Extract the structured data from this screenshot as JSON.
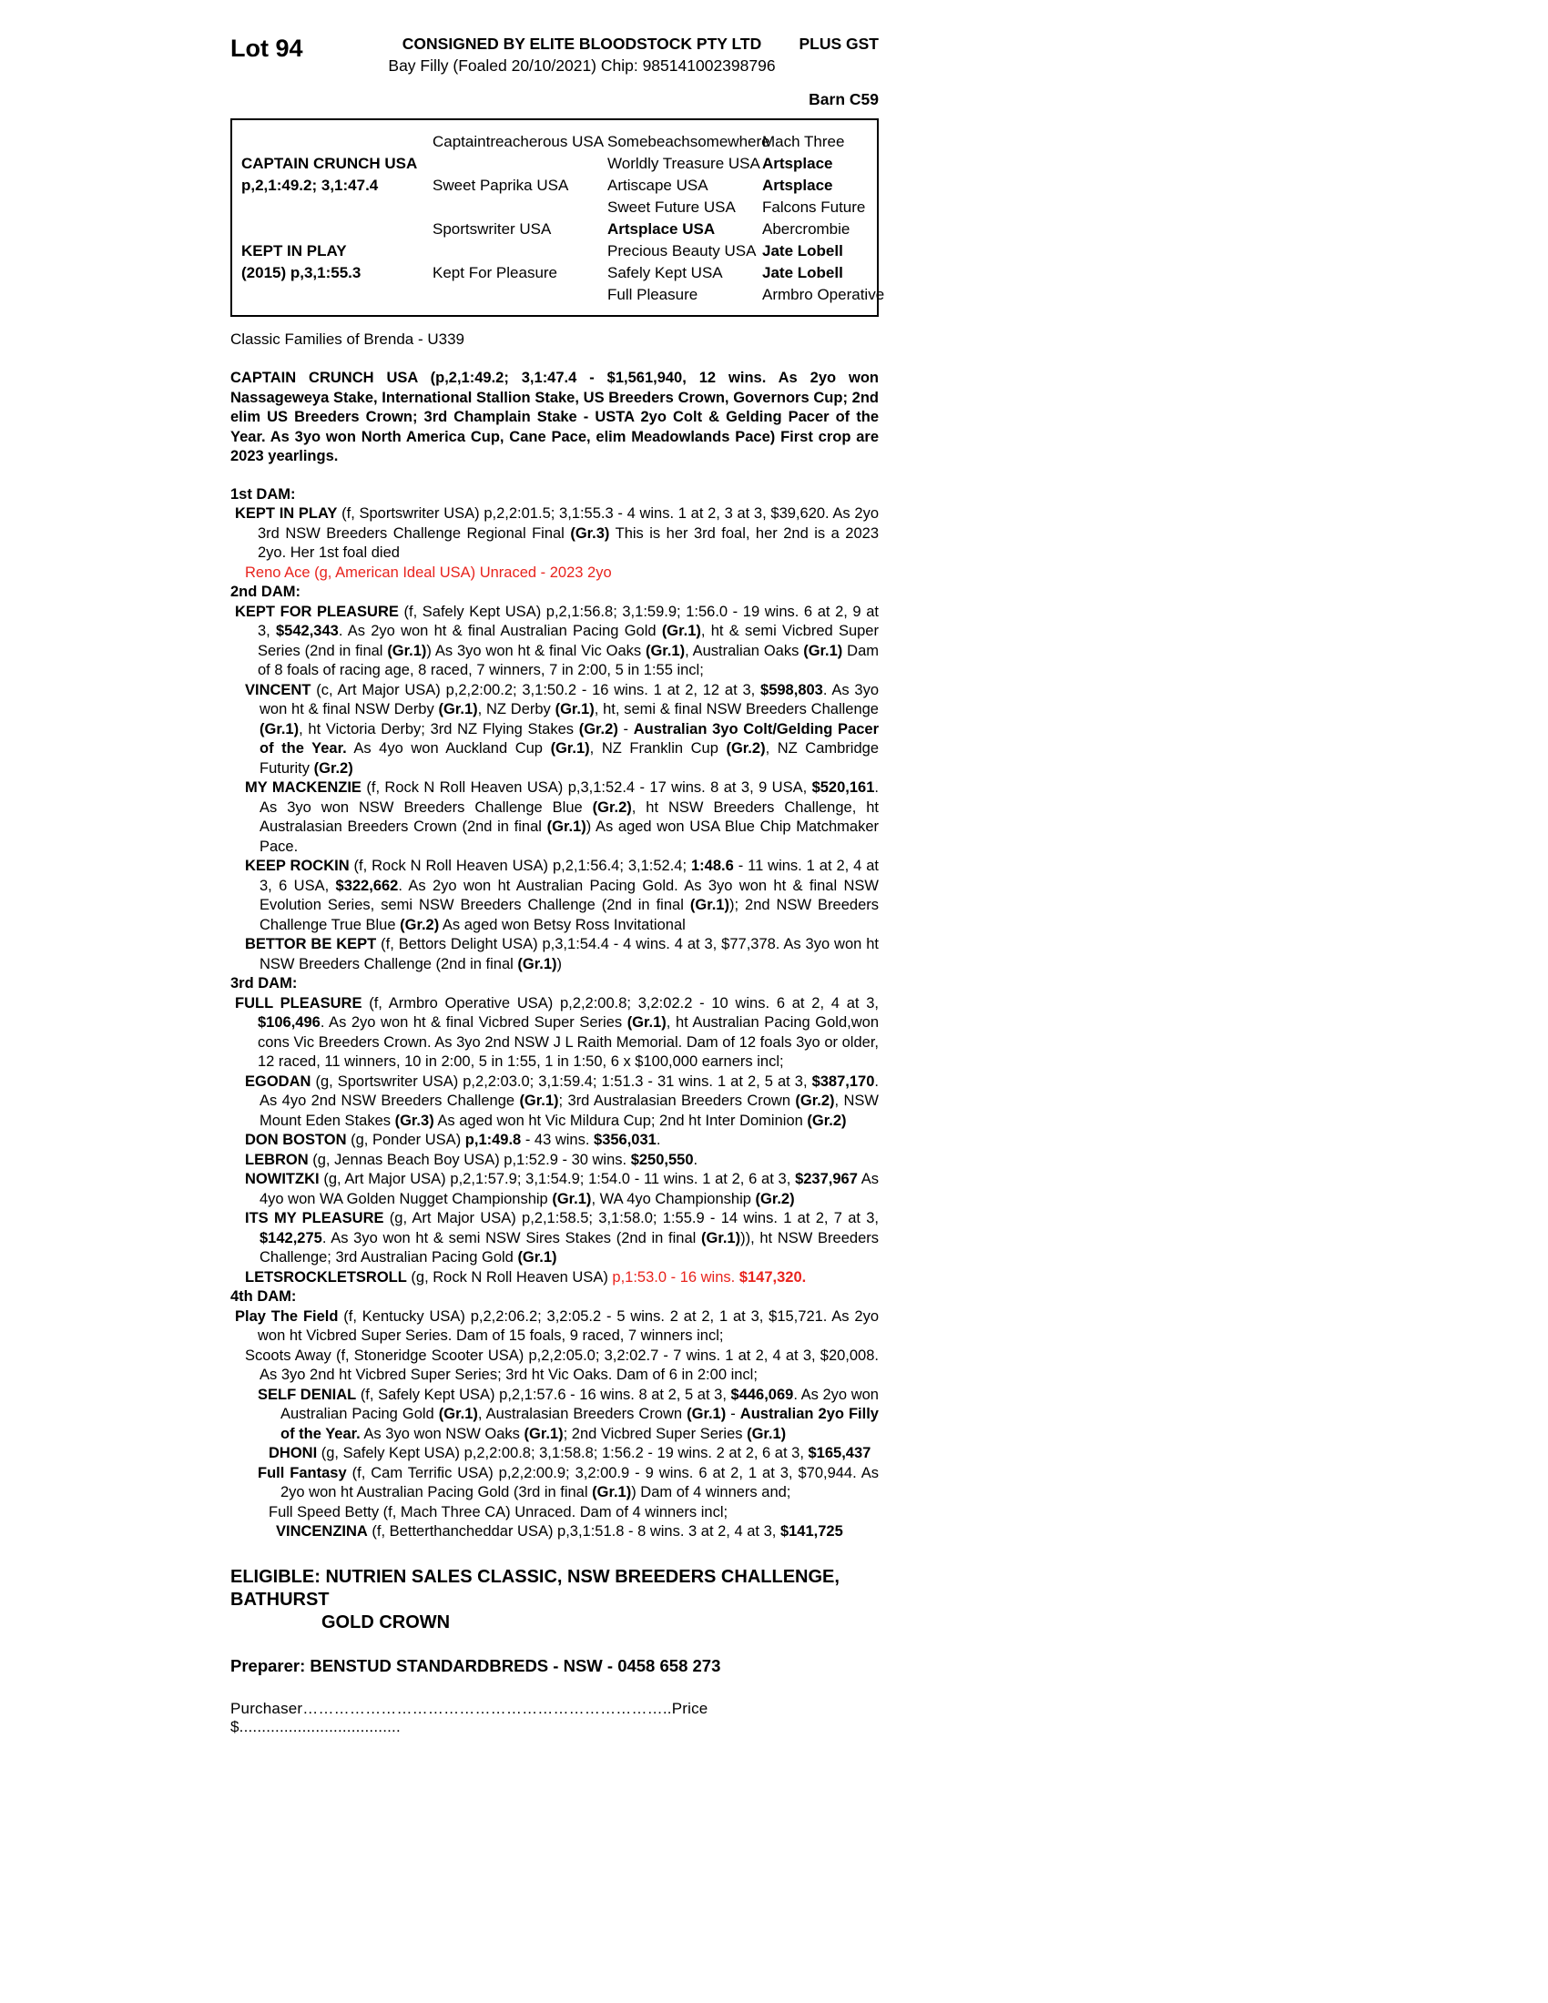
{
  "header": {
    "lot": "Lot 94",
    "consigned": "CONSIGNED BY ELITE BLOODSTOCK PTY LTD",
    "foaling": "Bay Filly (Foaled 20/10/2021) Chip: 985141002398796",
    "plus_gst": "PLUS GST",
    "barn": "Barn C59"
  },
  "pedigree": {
    "sire_name": "CAPTAIN CRUNCH USA",
    "sire_record": "p,2,1:49.2; 3,1:47.4",
    "dam_name": "KEPT IN PLAY",
    "dam_record": "(2015) p,3,1:55.3",
    "gen2": {
      "sire_sire": "Captaintreacherous USA",
      "sire_dam": "Sweet Paprika USA",
      "dam_sire": "Sportswriter USA",
      "dam_dam": "Kept For Pleasure"
    },
    "gen3": [
      [
        {
          "t": "Somebeachsomewhere"
        }
      ],
      [
        {
          "t": "Worldly Treasure USA"
        }
      ],
      [
        {
          "t": "Artiscape USA"
        }
      ],
      [
        {
          "t": "Sweet Future USA"
        }
      ],
      [
        {
          "t": "Artsplace USA",
          "b": true
        }
      ],
      [
        {
          "t": "Precious Beauty USA"
        }
      ],
      [
        {
          "t": "Safely Kept USA"
        }
      ],
      [
        {
          "t": "Full Pleasure"
        }
      ]
    ],
    "gen4": [
      [
        {
          "t": "Mach Three"
        }
      ],
      [
        {
          "t": "Artsplace",
          "b": true
        }
      ],
      [
        {
          "t": "Artsplace",
          "b": true
        }
      ],
      [
        {
          "t": "Falcons Future"
        }
      ],
      [
        {
          "t": "Abercrombie"
        }
      ],
      [
        {
          "t": "Jate Lobell",
          "b": true
        }
      ],
      [
        {
          "t": "Jate Lobell",
          "b": true
        }
      ],
      [
        {
          "t": "Armbro Operative"
        }
      ]
    ]
  },
  "classic_families": "Classic Families of Brenda - U339",
  "sire_paragraph": [
    {
      "t": "CAPTAIN CRUNCH USA (p,2,1:49.2; 3,1:47.4 - $1,561,940, 12 wins. As 2yo won Nassageweya Stake, International Stallion Stake, US Breeders Crown, Governors Cup; 2nd elim US Breeders Crown; 3rd Champlain Stake - USTA 2yo Colt & Gelding Pacer of the Year. As 3yo won North America Cup, Cane Pace, elim Meadowlands Pace) First crop are 2023 yearlings.",
      "b": true
    }
  ],
  "sections": [
    {
      "heading": "1st DAM:",
      "entries": [
        {
          "ind": 1,
          "segments": [
            {
              "t": "KEPT IN PLAY",
              "b": true
            },
            {
              "t": " (f, Sportswriter USA) p,2,2:01.5; 3,1:55.3 - 4 wins. 1 at 2, 3 at 3, $39,620. As 2yo 3rd NSW Breeders Challenge Regional Final "
            },
            {
              "t": "(Gr.3)",
              "b": true
            },
            {
              "t": " This is her 3rd foal, her 2nd is a 2023 2yo. Her 1st foal died"
            }
          ]
        },
        {
          "ind": 2,
          "segments": [
            {
              "t": "Reno Ace (g, American Ideal USA) Unraced - 2023 2yo",
              "r": true
            }
          ]
        }
      ]
    },
    {
      "heading": "2nd DAM:",
      "entries": [
        {
          "ind": 1,
          "segments": [
            {
              "t": "KEPT FOR PLEASURE",
              "b": true
            },
            {
              "t": " (f, Safely Kept USA) p,2,1:56.8; 3,1:59.9; 1:56.0 - 19 wins. 6 at 2, 9 at 3, "
            },
            {
              "t": "$542,343",
              "b": true
            },
            {
              "t": ". As 2yo won ht & final Australian Pacing Gold "
            },
            {
              "t": "(Gr.1)",
              "b": true
            },
            {
              "t": ", ht & semi Vicbred Super Series (2nd in final "
            },
            {
              "t": "(Gr.1)",
              "b": true
            },
            {
              "t": ") As 3yo won ht & final Vic Oaks "
            },
            {
              "t": "(Gr.1)",
              "b": true
            },
            {
              "t": ", Australian Oaks "
            },
            {
              "t": "(Gr.1)",
              "b": true
            },
            {
              "t": " Dam of 8 foals of racing age, 8 raced, 7 winners, 7 in 2:00, 5 in 1:55 incl;"
            }
          ]
        },
        {
          "ind": 2,
          "segments": [
            {
              "t": "VINCENT",
              "b": true
            },
            {
              "t": " (c, Art Major USA) p,2,2:00.2; 3,1:50.2 - 16 wins. 1 at 2, 12 at 3, "
            },
            {
              "t": "$598,803",
              "b": true
            },
            {
              "t": ". As 3yo won ht & final NSW Derby "
            },
            {
              "t": "(Gr.1)",
              "b": true
            },
            {
              "t": ", NZ Derby "
            },
            {
              "t": "(Gr.1)",
              "b": true
            },
            {
              "t": ", ht, semi & final NSW Breeders Challenge "
            },
            {
              "t": "(Gr.1)",
              "b": true
            },
            {
              "t": ", ht Victoria Derby; 3rd NZ Flying Stakes "
            },
            {
              "t": "(Gr.2)",
              "b": true
            },
            {
              "t": " - "
            },
            {
              "t": "Australian 3yo Colt/Gelding Pacer of the Year.",
              "b": true
            },
            {
              "t": " As 4yo won Auckland Cup "
            },
            {
              "t": "(Gr.1)",
              "b": true
            },
            {
              "t": ", NZ Franklin Cup "
            },
            {
              "t": "(Gr.2)",
              "b": true
            },
            {
              "t": ", NZ Cambridge Futurity "
            },
            {
              "t": "(Gr.2)",
              "b": true
            }
          ]
        },
        {
          "ind": 2,
          "segments": [
            {
              "t": "MY MACKENZIE",
              "b": true
            },
            {
              "t": " (f, Rock N Roll Heaven USA) p,3,1:52.4 - 17 wins. 8 at 3, 9 USA, "
            },
            {
              "t": "$520,161",
              "b": true
            },
            {
              "t": ". As 3yo won NSW Breeders Challenge Blue "
            },
            {
              "t": "(Gr.2)",
              "b": true
            },
            {
              "t": ", ht NSW Breeders Challenge, ht Australasian Breeders Crown (2nd in final "
            },
            {
              "t": "(Gr.1)",
              "b": true
            },
            {
              "t": ") As aged won USA Blue Chip Matchmaker Pace."
            }
          ]
        },
        {
          "ind": 2,
          "segments": [
            {
              "t": "KEEP ROCKIN",
              "b": true
            },
            {
              "t": " (f, Rock N Roll Heaven USA) p,2,1:56.4; 3,1:52.4; "
            },
            {
              "t": "1:48.6",
              "b": true
            },
            {
              "t": " - 11 wins. 1 at 2, 4 at 3, 6 USA, "
            },
            {
              "t": "$322,662",
              "b": true
            },
            {
              "t": ". As 2yo won ht Australian Pacing Gold. As 3yo won ht & final NSW Evolution Series, semi NSW Breeders Challenge (2nd in final "
            },
            {
              "t": "(Gr.1)",
              "b": true
            },
            {
              "t": "); 2nd NSW Breeders Challenge True Blue "
            },
            {
              "t": "(Gr.2)",
              "b": true
            },
            {
              "t": " As aged won Betsy Ross Invitational"
            }
          ]
        },
        {
          "ind": 2,
          "segments": [
            {
              "t": "BETTOR BE KEPT",
              "b": true
            },
            {
              "t": " (f, Bettors Delight USA) p,3,1:54.4 - 4 wins. 4 at 3, $77,378. As 3yo won ht NSW Breeders Challenge (2nd in final "
            },
            {
              "t": "(Gr.1)",
              "b": true
            },
            {
              "t": ")"
            }
          ]
        }
      ]
    },
    {
      "heading": "3rd DAM:",
      "entries": [
        {
          "ind": 1,
          "segments": [
            {
              "t": "FULL PLEASURE",
              "b": true
            },
            {
              "t": " (f, Armbro Operative USA) p,2,2:00.8; 3,2:02.2 - 10 wins. 6 at 2, 4 at 3, "
            },
            {
              "t": "$106,496",
              "b": true
            },
            {
              "t": ". As 2yo won ht & final Vicbred Super Series "
            },
            {
              "t": "(Gr.1)",
              "b": true
            },
            {
              "t": ", ht Australian Pacing Gold,won cons Vic Breeders Crown. As 3yo 2nd NSW J L Raith Memorial. Dam of 12 foals 3yo or older, 12 raced, 11 winners, 10 in 2:00, 5 in 1:55, 1 in 1:50, 6 x $100,000 earners incl;"
            }
          ]
        },
        {
          "ind": 2,
          "segments": [
            {
              "t": "EGODAN",
              "b": true
            },
            {
              "t": " (g, Sportswriter USA) p,2,2:03.0; 3,1:59.4; 1:51.3 - 31 wins. 1 at 2, 5 at 3, "
            },
            {
              "t": "$387,170",
              "b": true
            },
            {
              "t": ". As 4yo 2nd NSW Breeders Challenge "
            },
            {
              "t": "(Gr.1)",
              "b": true
            },
            {
              "t": "; 3rd Australasian Breeders Crown "
            },
            {
              "t": "(Gr.2)",
              "b": true
            },
            {
              "t": ", NSW Mount Eden Stakes "
            },
            {
              "t": "(Gr.3)",
              "b": true
            },
            {
              "t": " As aged won ht Vic Mildura Cup; 2nd ht Inter Dominion "
            },
            {
              "t": "(Gr.2)",
              "b": true
            }
          ]
        },
        {
          "ind": 2,
          "segments": [
            {
              "t": "DON BOSTON",
              "b": true
            },
            {
              "t": " (g, Ponder USA) "
            },
            {
              "t": "p,1:49.8",
              "b": true
            },
            {
              "t": " - 43 wins. "
            },
            {
              "t": "$356,031",
              "b": true
            },
            {
              "t": "."
            }
          ]
        },
        {
          "ind": 2,
          "segments": [
            {
              "t": "LEBRON",
              "b": true
            },
            {
              "t": " (g, Jennas Beach Boy USA) p,1:52.9 - 30 wins. "
            },
            {
              "t": "$250,550",
              "b": true
            },
            {
              "t": "."
            }
          ]
        },
        {
          "ind": 2,
          "segments": [
            {
              "t": "NOWITZKI",
              "b": true
            },
            {
              "t": " (g, Art Major USA) p,2,1:57.9; 3,1:54.9; 1:54.0 - 11 wins. 1 at 2, 6 at 3, "
            },
            {
              "t": "$237,967",
              "b": true
            },
            {
              "t": " As 4yo won WA Golden Nugget Championship "
            },
            {
              "t": "(Gr.1)",
              "b": true
            },
            {
              "t": ", WA 4yo Championship "
            },
            {
              "t": "(Gr.2)",
              "b": true
            }
          ]
        },
        {
          "ind": 2,
          "segments": [
            {
              "t": "ITS MY PLEASURE",
              "b": true
            },
            {
              "t": " (g, Art Major USA) p,2,1:58.5; 3,1:58.0; 1:55.9 - 14 wins. 1 at 2, 7 at 3, "
            },
            {
              "t": "$142,275",
              "b": true
            },
            {
              "t": ". As 3yo won ht & semi NSW Sires Stakes (2nd in final "
            },
            {
              "t": "(Gr.1)",
              "b": true
            },
            {
              "t": ")), ht NSW Breeders Challenge; 3rd Australian Pacing Gold "
            },
            {
              "t": "(Gr.1)",
              "b": true
            }
          ]
        },
        {
          "ind": 2,
          "segments": [
            {
              "t": "LETSROCKLETSROLL",
              "b": true
            },
            {
              "t": " (g, Rock N Roll Heaven USA) "
            },
            {
              "t": "p,1:53.0 - 16 wins. ",
              "r": true
            },
            {
              "t": "$147,320.",
              "r": true,
              "b": true
            }
          ]
        }
      ]
    },
    {
      "heading": "4th DAM:",
      "entries": [
        {
          "ind": 1,
          "segments": [
            {
              "t": "Play The Field",
              "b": true
            },
            {
              "t": " (f, Kentucky USA) p,2,2:06.2; 3,2:05.2 - 5 wins. 2 at 2, 1 at 3, $15,721. As 2yo won ht Vicbred Super Series. Dam of 15 foals, 9 raced, 7 winners incl;"
            }
          ]
        },
        {
          "ind": 2,
          "segments": [
            {
              "t": "Scoots Away (f, Stoneridge Scooter USA) p,2,2:05.0; 3,2:02.7 - 7 wins. 1 at 2, 4 at 3, $20,008. As 3yo 2nd ht Vicbred Super Series; 3rd ht Vic Oaks. Dam of 6 in 2:00 incl;"
            }
          ]
        },
        {
          "ind": 3,
          "segments": [
            {
              "t": "SELF DENIAL",
              "b": true
            },
            {
              "t": " (f, Safely Kept USA) p,2,1:57.6 - 16 wins. 8 at 2, 5 at 3, "
            },
            {
              "t": "$446,069",
              "b": true
            },
            {
              "t": ". As 2yo won Australian Pacing Gold "
            },
            {
              "t": "(Gr.1)",
              "b": true
            },
            {
              "t": ", Australasian Breeders Crown "
            },
            {
              "t": "(Gr.1)",
              "b": true
            },
            {
              "t": " - "
            },
            {
              "t": "Australian 2yo Filly of the Year.",
              "b": true
            },
            {
              "t": " As 3yo won NSW Oaks "
            },
            {
              "t": "(Gr.1)",
              "b": true
            },
            {
              "t": "; 2nd Vicbred Super Series "
            },
            {
              "t": "(Gr.1)",
              "b": true
            }
          ]
        },
        {
          "ind": 4,
          "segments": [
            {
              "t": "DHONI",
              "b": true
            },
            {
              "t": " (g, Safely Kept USA) p,2,2:00.8; 3,1:58.8; 1:56.2 - 19 wins. 2 at 2, 6 at 3, "
            },
            {
              "t": "$165,437",
              "b": true
            }
          ]
        },
        {
          "ind": 3,
          "segments": [
            {
              "t": "Full Fantasy",
              "b": true
            },
            {
              "t": " (f, Cam Terrific USA) p,2,2:00.9; 3,2:00.9 - 9 wins. 6 at 2, 1 at 3, $70,944. As 2yo won ht Australian Pacing Gold (3rd in final "
            },
            {
              "t": "(Gr.1)",
              "b": true
            },
            {
              "t": ") Dam of 4 winners and;"
            }
          ]
        },
        {
          "ind": 4,
          "segments": [
            {
              "t": "Full Speed Betty (f, Mach Three CA) Unraced. Dam of 4 winners incl;"
            }
          ]
        },
        {
          "ind": 5,
          "segments": [
            {
              "t": "VINCENZINA",
              "b": true
            },
            {
              "t": " (f, Betterthancheddar USA) p,3,1:51.8 - 8 wins. 3 at 2, 4 at 3, "
            },
            {
              "t": "$141,725",
              "b": true
            }
          ]
        }
      ]
    }
  ],
  "eligible": {
    "line1": "ELIGIBLE: NUTRIEN SALES CLASSIC, NSW BREEDERS CHALLENGE, BATHURST",
    "line2": "GOLD CROWN"
  },
  "preparer": "Preparer: BENSTUD STANDARDBREDS - NSW - 0458 658 273",
  "purchaser_line": "Purchaser……………………………………………………………..Price $...................................."
}
